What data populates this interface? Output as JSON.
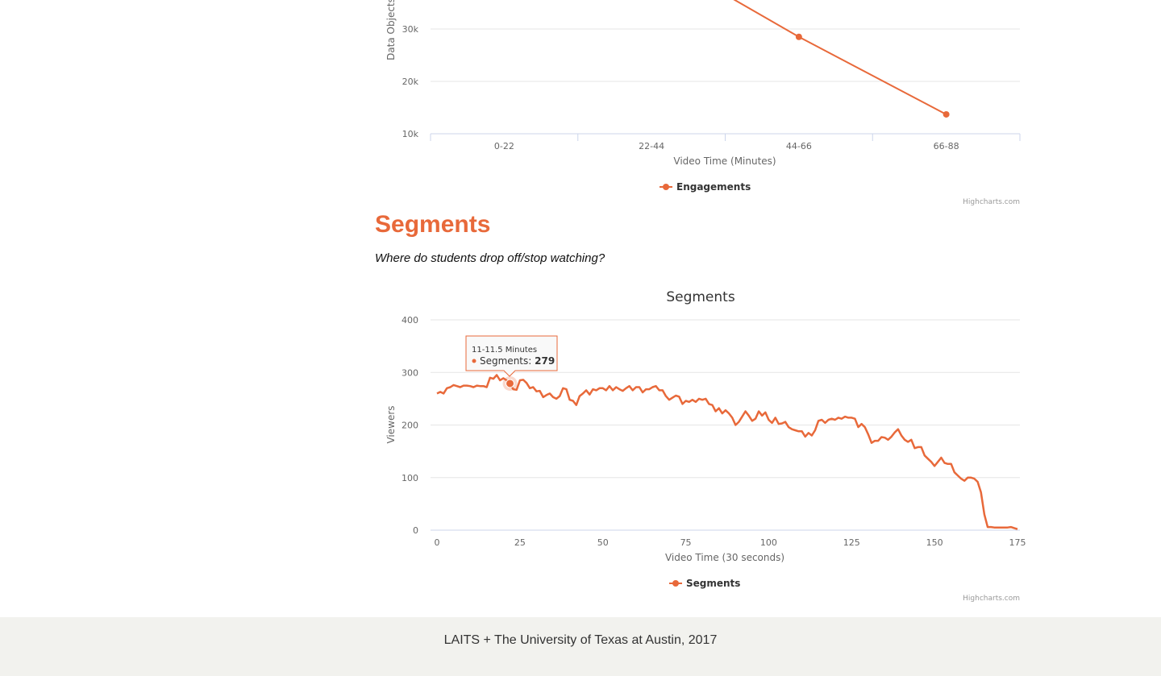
{
  "accent_color": "#e8693a",
  "chart1": {
    "title": "",
    "ylabel": "Data Objects",
    "xlabel": "Video Time (Minutes)",
    "y_ticks": [
      "10k",
      "20k",
      "30k"
    ],
    "legend": "Engagements",
    "credits": "Highcharts.com"
  },
  "section": {
    "title": "Segments",
    "subtitle": "Where do students drop off/stop watching?"
  },
  "chart2": {
    "title": "Segments",
    "ylabel": "Viewers",
    "xlabel": "Video Time (30 seconds)",
    "y_ticks": [
      "0",
      "100",
      "200",
      "300",
      "400"
    ],
    "x_ticks": [
      "0",
      "25",
      "50",
      "75",
      "100",
      "125",
      "150",
      "175"
    ],
    "legend": "Segments",
    "credits": "Highcharts.com",
    "tooltip": {
      "header": "11-11.5 Minutes",
      "series_label": "Segments:",
      "value": "279"
    }
  },
  "chart_data": [
    {
      "type": "line",
      "title": "",
      "xlabel": "Video Time (Minutes)",
      "ylabel": "Data Objects",
      "categories": [
        "0-22",
        "22-44",
        "44-66",
        "66-88"
      ],
      "series": [
        {
          "name": "Engagements",
          "values": [
            null,
            null,
            28500,
            13700
          ]
        }
      ],
      "ylim": [
        10000,
        30000
      ],
      "grid": true,
      "legend": "bottom-center"
    },
    {
      "type": "line",
      "title": "Segments",
      "xlabel": "Video Time (30 seconds)",
      "ylabel": "Viewers",
      "xlim": [
        0,
        175
      ],
      "ylim": [
        0,
        400
      ],
      "grid": true,
      "legend": "bottom-center",
      "series": [
        {
          "name": "Segments",
          "values": [
            260,
            263,
            260,
            270,
            272,
            276,
            274,
            272,
            275,
            275,
            274,
            272,
            275,
            274,
            274,
            272,
            290,
            288,
            295,
            285,
            289,
            285,
            279,
            268,
            267,
            285,
            286,
            280,
            270,
            272,
            264,
            265,
            253,
            257,
            260,
            253,
            250,
            255,
            270,
            268,
            248,
            246,
            238,
            255,
            260,
            266,
            258,
            268,
            266,
            270,
            270,
            266,
            274,
            266,
            272,
            268,
            265,
            270,
            274,
            266,
            272,
            272,
            262,
            268,
            268,
            272,
            274,
            266,
            266,
            255,
            248,
            252,
            256,
            254,
            240,
            246,
            244,
            248,
            244,
            250,
            248,
            250,
            240,
            238,
            226,
            232,
            222,
            228,
            222,
            214,
            200,
            206,
            216,
            226,
            218,
            208,
            212,
            226,
            218,
            224,
            210,
            204,
            214,
            202,
            203,
            206,
            196,
            192,
            190,
            188,
            188,
            178,
            185,
            180,
            190,
            208,
            210,
            204,
            210,
            212,
            210,
            214,
            212,
            216,
            214,
            214,
            212,
            196,
            202,
            196,
            182,
            166,
            170,
            170,
            177,
            176,
            172,
            178,
            186,
            192,
            180,
            172,
            168,
            172,
            156,
            158,
            158,
            142,
            136,
            130,
            122,
            130,
            138,
            128,
            126,
            126,
            110,
            104,
            98,
            94,
            100,
            100,
            98,
            92,
            72,
            30,
            6,
            6,
            5,
            5,
            5,
            5,
            5,
            6,
            4,
            2
          ]
        }
      ]
    }
  ]
}
